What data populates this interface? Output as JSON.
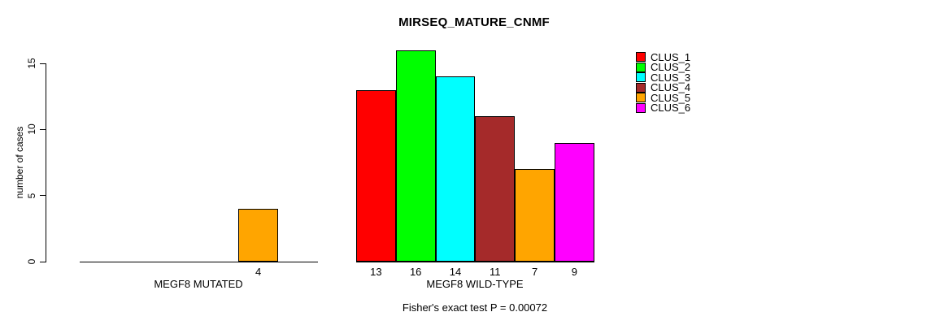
{
  "chart_data": {
    "type": "bar",
    "title": "MIRSEQ_MATURE_CNMF",
    "ylabel": "number of cases",
    "xlabel": "",
    "subtitle": "Fisher's exact test P = 0.00072",
    "ylim": [
      0,
      15
    ],
    "yticks": [
      0,
      5,
      10,
      15
    ],
    "grid": false,
    "legend_position": "top-right",
    "legend": [
      {
        "label": "CLUS_1",
        "color": "#FF0000"
      },
      {
        "label": "CLUS_2",
        "color": "#00FF00"
      },
      {
        "label": "CLUS_3",
        "color": "#00FFFF"
      },
      {
        "label": "CLUS_4",
        "color": "#A52A2A"
      },
      {
        "label": "CLUS_5",
        "color": "#FFA500"
      },
      {
        "label": "CLUS_6",
        "color": "#FF00FF"
      }
    ],
    "groups": [
      {
        "label": "MEGF8 MUTATED",
        "values": [
          0,
          0,
          0,
          0,
          4,
          0
        ]
      },
      {
        "label": "MEGF8 WILD-TYPE",
        "values": [
          13,
          16,
          14,
          11,
          7,
          9
        ]
      }
    ],
    "shown_bar_labels": [
      "4",
      "13",
      "16",
      "14",
      "11",
      "7",
      "9"
    ],
    "colors": {
      "background": "#FFFFFF",
      "axis": "#000000",
      "text": "#000000"
    }
  }
}
